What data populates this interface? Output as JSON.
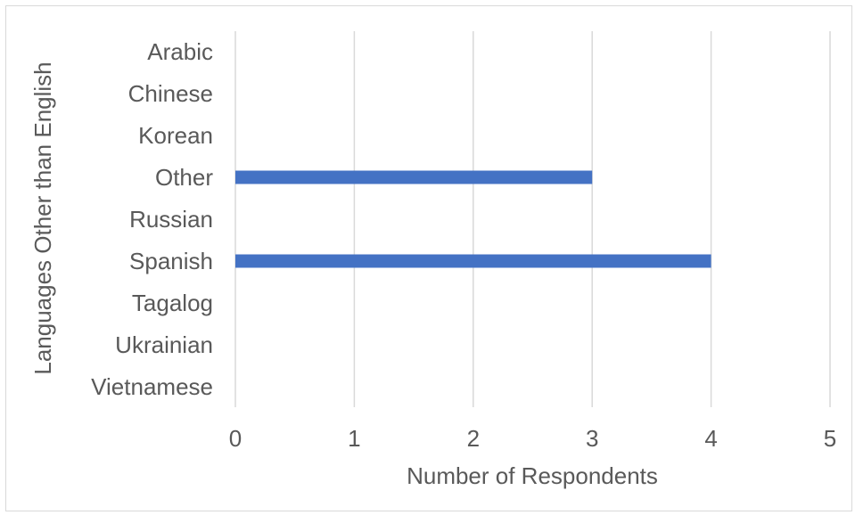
{
  "chart_data": {
    "type": "bar",
    "orientation": "horizontal",
    "categories": [
      "Arabic",
      "Chinese",
      "Korean",
      "Other",
      "Russian",
      "Spanish",
      "Tagalog",
      "Ukrainian",
      "Vietnamese"
    ],
    "values": [
      0,
      0,
      0,
      3,
      0,
      4,
      0,
      0,
      0
    ],
    "xlabel": "Number of Respondents",
    "ylabel": "Languages  Other than English",
    "xlim": [
      0,
      5
    ],
    "xticks": [
      "0",
      "1",
      "2",
      "3",
      "4",
      "5"
    ],
    "grid": true,
    "legend": "none",
    "colors": {
      "bar": "#4472c4",
      "grid": "#d9d9d9",
      "text": "#595959"
    }
  }
}
